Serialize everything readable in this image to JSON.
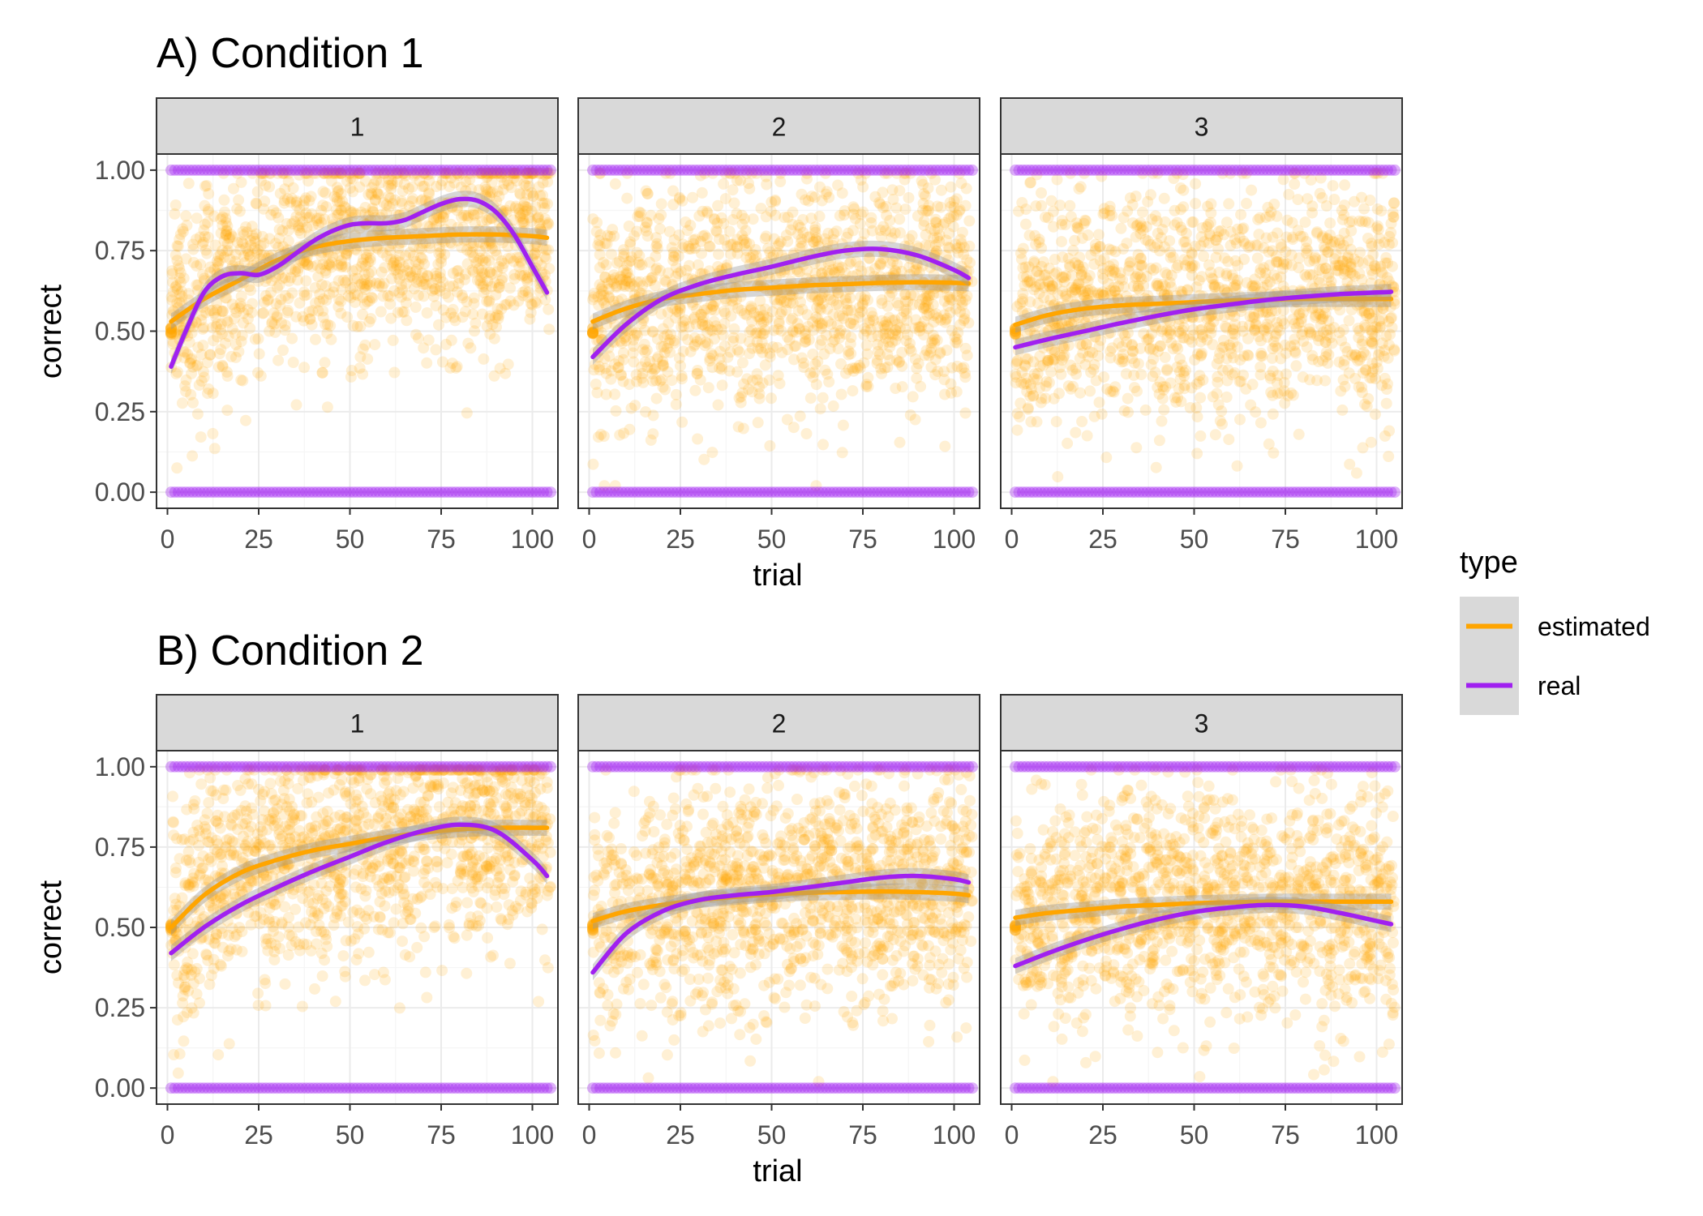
{
  "colors": {
    "estimated": "#FFA500",
    "real": "#A020F0",
    "strip_fill": "#D9D9D9",
    "grid_major": "#EBEBEB",
    "grid_minor": "#F5F5F5",
    "frame": "#333333",
    "ribbon": "#999999"
  },
  "legend": {
    "title": "type",
    "position": "right",
    "items": [
      {
        "label": "estimated",
        "color_key": "estimated"
      },
      {
        "label": "real",
        "color_key": "real"
      }
    ]
  },
  "chart_data": [
    {
      "type": "scatter",
      "title": "A) Condition 1",
      "xlabel": "trial",
      "ylabel": "correct",
      "xlim": [
        -3,
        107
      ],
      "ylim": [
        -0.05,
        1.05
      ],
      "x_ticks": [
        0,
        25,
        50,
        75,
        100
      ],
      "y_ticks": [
        0.0,
        0.25,
        0.5,
        0.75,
        1.0
      ],
      "y_tick_labels": [
        "0.00",
        "0.25",
        "0.50",
        "0.75",
        "1.00"
      ],
      "grid": true,
      "smooth": "loess with ribbon",
      "panels": [
        {
          "strip": "1",
          "estimated_points": {
            "x_range": [
              1,
              105
            ],
            "y_center": [
              0.5,
              0.8
            ],
            "y_spread": 0.17
          },
          "real_points": {
            "x_range": [
              1,
              105
            ],
            "y_values": [
              0,
              1
            ]
          },
          "series": [
            {
              "name": "estimated",
              "x": [
                1,
                10,
                20,
                30,
                40,
                50,
                60,
                70,
                80,
                90,
                100,
                104
              ],
              "y": [
                0.53,
                0.6,
                0.66,
                0.72,
                0.76,
                0.78,
                0.79,
                0.795,
                0.8,
                0.8,
                0.795,
                0.79
              ]
            },
            {
              "name": "real",
              "x": [
                1,
                5,
                10,
                15,
                20,
                25,
                30,
                35,
                40,
                45,
                50,
                55,
                60,
                65,
                70,
                75,
                80,
                85,
                90,
                95,
                100,
                104
              ],
              "y": [
                0.39,
                0.5,
                0.62,
                0.67,
                0.68,
                0.675,
                0.7,
                0.74,
                0.78,
                0.81,
                0.83,
                0.835,
                0.835,
                0.845,
                0.87,
                0.895,
                0.91,
                0.905,
                0.87,
                0.8,
                0.7,
                0.62
              ]
            }
          ]
        },
        {
          "strip": "2",
          "estimated_points": {
            "x_range": [
              1,
              105
            ],
            "y_center": [
              0.5,
              0.66
            ],
            "y_spread": 0.18
          },
          "real_points": {
            "x_range": [
              1,
              105
            ],
            "y_values": [
              0,
              1
            ]
          },
          "series": [
            {
              "name": "estimated",
              "x": [
                1,
                10,
                20,
                30,
                40,
                50,
                60,
                70,
                80,
                90,
                100,
                104
              ],
              "y": [
                0.53,
                0.57,
                0.6,
                0.615,
                0.628,
                0.635,
                0.642,
                0.646,
                0.65,
                0.652,
                0.65,
                0.648
              ]
            },
            {
              "name": "real",
              "x": [
                1,
                10,
                20,
                30,
                40,
                50,
                60,
                70,
                80,
                90,
                100,
                104
              ],
              "y": [
                0.42,
                0.52,
                0.6,
                0.645,
                0.675,
                0.7,
                0.728,
                0.75,
                0.755,
                0.735,
                0.69,
                0.665
              ]
            }
          ]
        },
        {
          "strip": "3",
          "estimated_points": {
            "x_range": [
              1,
              105
            ],
            "y_center": [
              0.5,
              0.6
            ],
            "y_spread": 0.18
          },
          "real_points": {
            "x_range": [
              1,
              105
            ],
            "y_values": [
              0,
              1
            ]
          },
          "series": [
            {
              "name": "estimated",
              "x": [
                1,
                10,
                20,
                30,
                40,
                50,
                60,
                70,
                80,
                90,
                100,
                104
              ],
              "y": [
                0.52,
                0.55,
                0.57,
                0.58,
                0.585,
                0.59,
                0.595,
                0.598,
                0.6,
                0.6,
                0.6,
                0.6
              ]
            },
            {
              "name": "real",
              "x": [
                1,
                10,
                20,
                30,
                40,
                50,
                60,
                70,
                80,
                90,
                100,
                104
              ],
              "y": [
                0.45,
                0.475,
                0.5,
                0.525,
                0.548,
                0.568,
                0.583,
                0.597,
                0.607,
                0.615,
                0.62,
                0.622
              ]
            }
          ]
        }
      ]
    },
    {
      "type": "scatter",
      "title": "B) Condition 2",
      "xlabel": "trial",
      "ylabel": "correct",
      "xlim": [
        -3,
        107
      ],
      "ylim": [
        -0.05,
        1.05
      ],
      "x_ticks": [
        0,
        25,
        50,
        75,
        100
      ],
      "y_ticks": [
        0.0,
        0.25,
        0.5,
        0.75,
        1.0
      ],
      "y_tick_labels": [
        "0.00",
        "0.25",
        "0.50",
        "0.75",
        "1.00"
      ],
      "grid": true,
      "smooth": "loess with ribbon",
      "panels": [
        {
          "strip": "1",
          "estimated_points": {
            "x_range": [
              1,
              105
            ],
            "y_center": [
              0.5,
              0.8
            ],
            "y_spread": 0.18
          },
          "real_points": {
            "x_range": [
              1,
              105
            ],
            "y_values": [
              0,
              1
            ]
          },
          "series": [
            {
              "name": "estimated",
              "x": [
                1,
                10,
                20,
                30,
                40,
                50,
                60,
                70,
                80,
                90,
                100,
                104
              ],
              "y": [
                0.5,
                0.6,
                0.67,
                0.71,
                0.74,
                0.76,
                0.78,
                0.795,
                0.805,
                0.81,
                0.81,
                0.81
              ]
            },
            {
              "name": "real",
              "x": [
                1,
                10,
                20,
                30,
                40,
                50,
                60,
                70,
                80,
                90,
                100,
                104
              ],
              "y": [
                0.42,
                0.5,
                0.57,
                0.625,
                0.675,
                0.72,
                0.765,
                0.8,
                0.82,
                0.8,
                0.71,
                0.66
              ]
            }
          ]
        },
        {
          "strip": "2",
          "estimated_points": {
            "x_range": [
              1,
              105
            ],
            "y_center": [
              0.5,
              0.62
            ],
            "y_spread": 0.18
          },
          "real_points": {
            "x_range": [
              1,
              105
            ],
            "y_values": [
              0,
              1
            ]
          },
          "series": [
            {
              "name": "estimated",
              "x": [
                1,
                10,
                20,
                30,
                40,
                50,
                60,
                70,
                80,
                90,
                100,
                104
              ],
              "y": [
                0.52,
                0.55,
                0.57,
                0.585,
                0.595,
                0.603,
                0.608,
                0.61,
                0.612,
                0.61,
                0.605,
                0.6
              ]
            },
            {
              "name": "real",
              "x": [
                1,
                10,
                20,
                30,
                40,
                50,
                60,
                70,
                80,
                90,
                100,
                104
              ],
              "y": [
                0.36,
                0.48,
                0.55,
                0.585,
                0.6,
                0.61,
                0.625,
                0.64,
                0.655,
                0.66,
                0.65,
                0.64
              ]
            }
          ]
        },
        {
          "strip": "3",
          "estimated_points": {
            "x_range": [
              1,
              105
            ],
            "y_center": [
              0.5,
              0.58
            ],
            "y_spread": 0.18
          },
          "real_points": {
            "x_range": [
              1,
              105
            ],
            "y_values": [
              0,
              1
            ]
          },
          "series": [
            {
              "name": "estimated",
              "x": [
                1,
                10,
                20,
                30,
                40,
                50,
                60,
                70,
                80,
                90,
                100,
                104
              ],
              "y": [
                0.53,
                0.545,
                0.555,
                0.565,
                0.57,
                0.575,
                0.578,
                0.58,
                0.58,
                0.58,
                0.58,
                0.58
              ]
            },
            {
              "name": "real",
              "x": [
                1,
                10,
                20,
                30,
                40,
                50,
                60,
                70,
                80,
                90,
                100,
                104
              ],
              "y": [
                0.38,
                0.42,
                0.46,
                0.495,
                0.525,
                0.548,
                0.562,
                0.57,
                0.565,
                0.545,
                0.52,
                0.51
              ]
            }
          ]
        }
      ]
    }
  ]
}
